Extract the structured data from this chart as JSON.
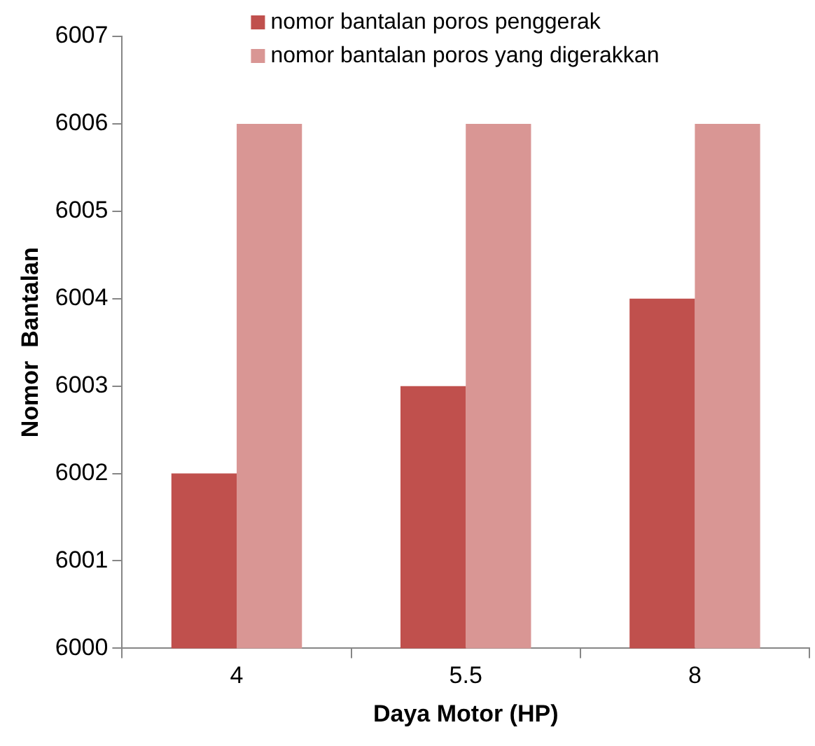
{
  "chart_data": {
    "type": "bar",
    "xlabel": "Daya Motor (HP)",
    "ylabel": "Nomor  Bantalan",
    "categories": [
      "4",
      "5.5",
      "8"
    ],
    "series": [
      {
        "name": "nomor bantalan poros penggerak",
        "color": "#c0504d",
        "values": [
          6002,
          6003,
          6004
        ]
      },
      {
        "name": "nomor bantalan poros yang digerakkan",
        "color": "#d99694",
        "values": [
          6006,
          6006,
          6006
        ]
      }
    ],
    "ylim": [
      6000,
      6007
    ],
    "yticks": [
      6000,
      6001,
      6002,
      6003,
      6004,
      6005,
      6006,
      6007
    ],
    "grid": false,
    "legend": "top"
  }
}
